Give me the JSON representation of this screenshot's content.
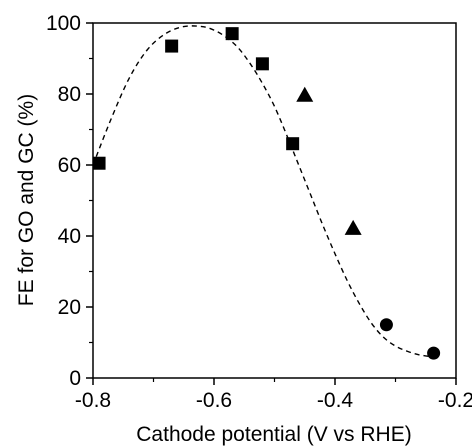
{
  "chart_data": {
    "type": "scatter",
    "title": "",
    "xlabel": "Cathode potential (V vs RHE)",
    "ylabel": "FE for GO and GC (%)",
    "xlim": [
      -0.8,
      -0.2
    ],
    "ylim": [
      0,
      100
    ],
    "xticks": [
      -0.8,
      -0.6,
      -0.4,
      -0.2
    ],
    "xtick_labels": [
      "-0.8",
      "-0.6",
      "-0.4",
      "-0.2"
    ],
    "xminor": [
      -0.7,
      -0.5,
      -0.3
    ],
    "yticks": [
      0,
      20,
      40,
      60,
      80,
      100
    ],
    "ytick_labels": [
      "0",
      "20",
      "40",
      "60",
      "80",
      "100"
    ],
    "grid": false,
    "legend": "none",
    "series": [
      {
        "marker": "square",
        "color": "#000000",
        "x": [
          -0.79,
          -0.67,
          -0.57,
          -0.52,
          -0.47
        ],
        "y": [
          60.5,
          93.5,
          97.0,
          88.5,
          66.0
        ]
      },
      {
        "marker": "triangle",
        "color": "#000000",
        "x": [
          -0.45,
          -0.37
        ],
        "y": [
          79.5,
          42.0
        ]
      },
      {
        "marker": "circle",
        "color": "#000000",
        "x": [
          -0.315,
          -0.237
        ],
        "y": [
          15.0,
          7.0
        ]
      }
    ],
    "fit_curve": {
      "style": "dashed",
      "color": "#000000",
      "x": [
        -0.8,
        -0.77,
        -0.74,
        -0.71,
        -0.68,
        -0.65,
        -0.62,
        -0.6,
        -0.58,
        -0.56,
        -0.54,
        -0.52,
        -0.5,
        -0.48,
        -0.46,
        -0.44,
        -0.42,
        -0.4,
        -0.38,
        -0.36,
        -0.34,
        -0.32,
        -0.3,
        -0.28,
        -0.26,
        -0.24
      ],
      "y": [
        60.0,
        73.0,
        84.5,
        92.5,
        97.0,
        99.0,
        99.0,
        98.0,
        96.0,
        93.0,
        88.5,
        83.0,
        76.5,
        68.5,
        60.0,
        51.5,
        43.0,
        35.0,
        27.5,
        21.0,
        15.5,
        11.5,
        9.0,
        7.5,
        6.5,
        6.0
      ]
    }
  }
}
